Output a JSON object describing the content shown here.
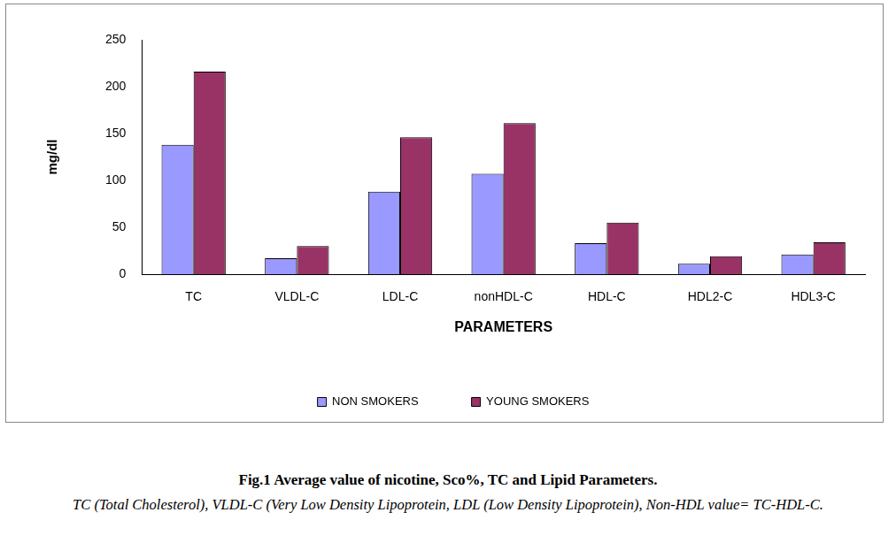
{
  "chart_data": {
    "type": "bar",
    "title": "Fig.1 Average value of nicotine, Sco%, TC and Lipid Parameters.",
    "subtitle": "TC (Total Cholesterol), VLDL-C (Very Low Density Lipoprotein, LDL (Low Density Lipoprotein), Non-HDL value= TC-HDL-C.",
    "x_label": "PARAMETERS",
    "y_label": "mg/dl",
    "categories": [
      "TC",
      "VLDL-C",
      "LDL-C",
      "nonHDL-C",
      "HDL-C",
      "HDL2-C",
      "HDL3-C"
    ],
    "series": [
      {
        "name": "NON SMOKERS",
        "color": "#9999ff",
        "values": [
          138,
          17,
          88,
          107,
          33,
          11,
          21
        ]
      },
      {
        "name": "YOUNG SMOKERS",
        "color": "#993366",
        "values": [
          216,
          30,
          146,
          161,
          55,
          19,
          34
        ]
      }
    ],
    "ylim": [
      0,
      250
    ],
    "yticks": [
      0,
      50,
      100,
      150,
      200,
      250
    ],
    "grid": false,
    "legend": "bottom"
  }
}
